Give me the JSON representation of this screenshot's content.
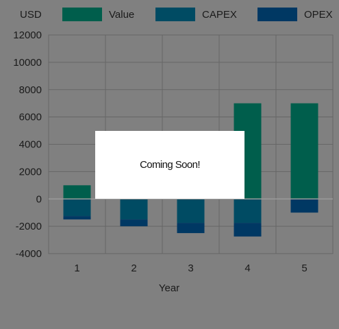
{
  "chart_data": {
    "type": "bar",
    "stacked": true,
    "ylabel": "USD",
    "xlabel": "Year",
    "categories": [
      "1",
      "2",
      "3",
      "4",
      "5"
    ],
    "series": [
      {
        "name": "Value",
        "color": "#005e4c",
        "values": [
          1000,
          0,
          0,
          7000,
          7000
        ]
      },
      {
        "name": "CAPEX",
        "color": "#004b63",
        "values": [
          -1250,
          -1500,
          -1750,
          -1750,
          0
        ]
      },
      {
        "name": "OPEX",
        "color": "#003863",
        "values": [
          -250,
          -500,
          -750,
          -1000,
          -1000
        ]
      }
    ],
    "ylim": [
      -4000,
      12000
    ],
    "yticks": [
      "12000",
      "10000",
      "8000",
      "6000",
      "4000",
      "2000",
      "0",
      "-2000",
      "-4000"
    ],
    "grid": true,
    "legend_position": "top"
  },
  "overlay": {
    "text": "Coming Soon!"
  }
}
